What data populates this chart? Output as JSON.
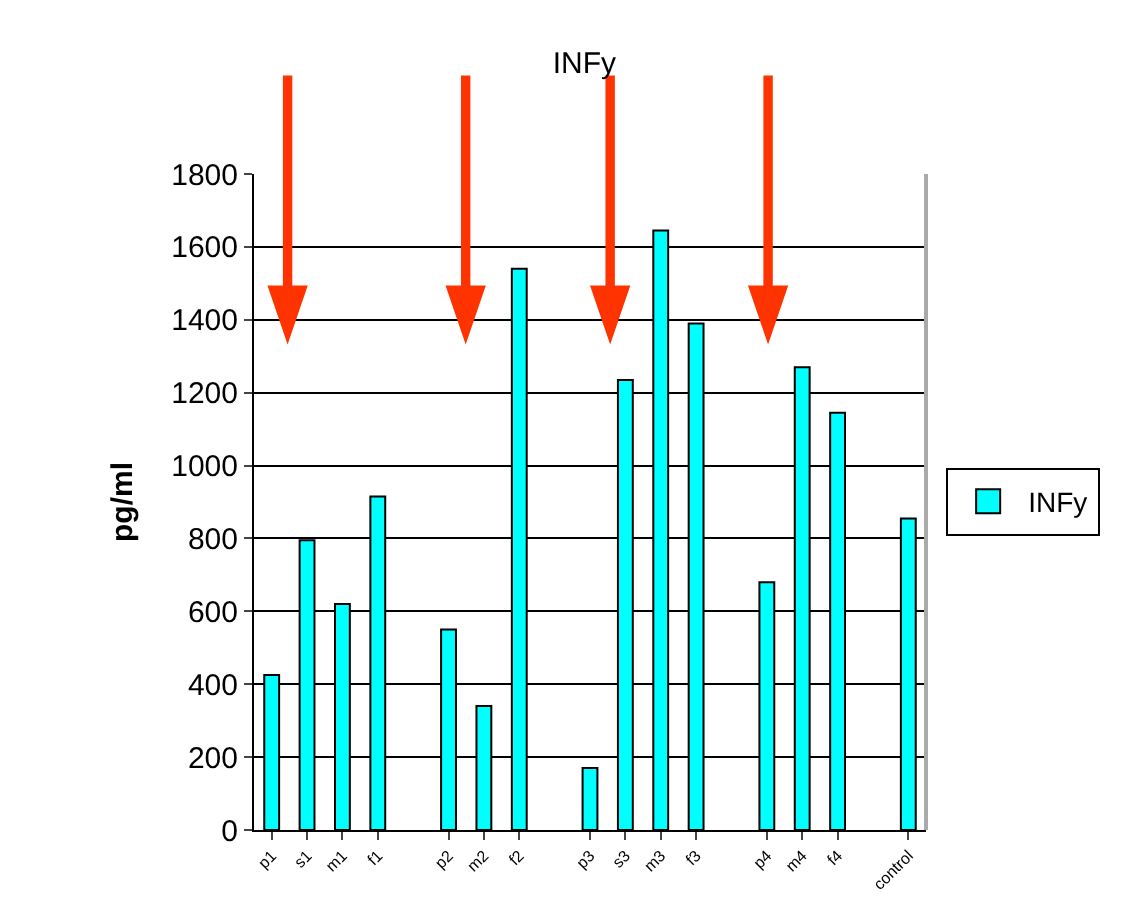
{
  "chart_data": {
    "type": "bar",
    "title": "INFy",
    "ylabel": "pg/ml",
    "categories": [
      "p1",
      "s1",
      "m1",
      "f1",
      null,
      "p2",
      "m2",
      "f2",
      null,
      "p3",
      "s3",
      "m3",
      "f3",
      null,
      "p4",
      "m4",
      "f4",
      null,
      "control"
    ],
    "series": [
      {
        "name": "INFy",
        "color": "#00ffff",
        "values": [
          425,
          795,
          620,
          915,
          null,
          550,
          340,
          1540,
          null,
          170,
          1235,
          1645,
          1390,
          null,
          680,
          1270,
          1145,
          null,
          855
        ]
      }
    ],
    "ylim": [
      0,
      1800
    ],
    "yticks": [
      0,
      200,
      400,
      600,
      800,
      1000,
      1200,
      1400,
      1600,
      1800
    ],
    "grid": "y",
    "legend": "right"
  }
}
